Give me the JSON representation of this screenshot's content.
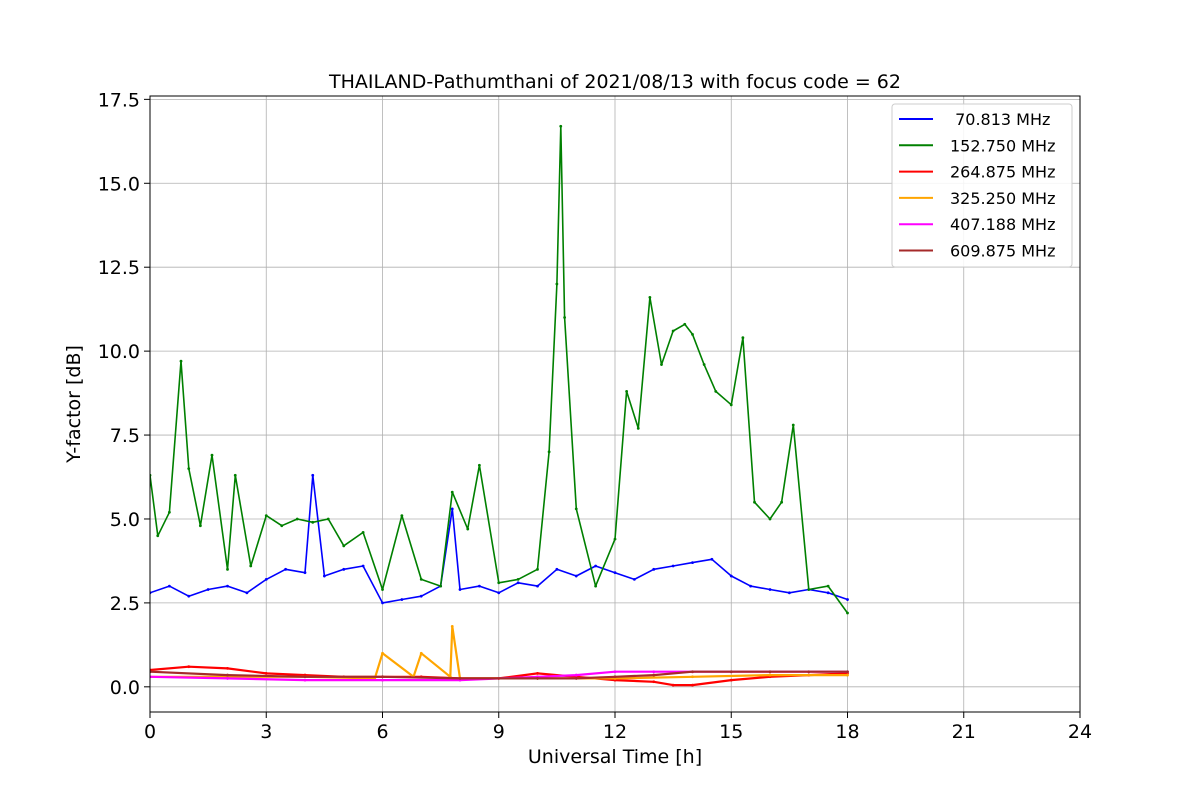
{
  "chart_data": {
    "type": "line",
    "title": "THAILAND-Pathumthani of 2021/08/13 with focus code = 62",
    "xlabel": "Universal Time [h]",
    "ylabel": "Y-factor [dB]",
    "xlim": [
      0,
      24
    ],
    "ylim": [
      -0.75,
      17.6
    ],
    "xticks": [
      0,
      3,
      6,
      9,
      12,
      15,
      18,
      21,
      24
    ],
    "xtick_labels": [
      "0",
      "3",
      "6",
      "9",
      "12",
      "15",
      "18",
      "21",
      "24"
    ],
    "yticks": [
      0,
      2.5,
      5,
      7.5,
      10,
      12.5,
      15,
      17.5
    ],
    "ytick_labels": [
      "0.0",
      "2.5",
      "5.0",
      "7.5",
      "10.0",
      "12.5",
      "15.0",
      "17.5"
    ],
    "grid": true,
    "legend_position": "top-right",
    "series": [
      {
        "name": " 70.813 MHz",
        "color": "#0000ff",
        "x": [
          0.0,
          0.5,
          1.0,
          1.5,
          2.0,
          2.5,
          3.0,
          3.5,
          4.0,
          4.2,
          4.5,
          5.0,
          5.5,
          6.0,
          6.5,
          7.0,
          7.5,
          7.8,
          8.0,
          8.5,
          9.0,
          9.5,
          10.0,
          10.5,
          11.0,
          11.5,
          12.0,
          12.5,
          13.0,
          13.5,
          14.0,
          14.5,
          15.0,
          15.5,
          16.0,
          16.5,
          17.0,
          17.5,
          18.0
        ],
        "y": [
          2.8,
          3.0,
          2.7,
          2.9,
          3.0,
          2.8,
          3.2,
          3.5,
          3.4,
          6.3,
          3.3,
          3.5,
          3.6,
          2.5,
          2.6,
          2.7,
          3.0,
          5.3,
          2.9,
          3.0,
          2.8,
          3.1,
          3.0,
          3.5,
          3.3,
          3.6,
          3.4,
          3.2,
          3.5,
          3.6,
          3.7,
          3.8,
          3.3,
          3.0,
          2.9,
          2.8,
          2.9,
          2.8,
          2.6
        ]
      },
      {
        "name": "152.750 MHz",
        "color": "#008000",
        "x": [
          0.0,
          0.2,
          0.5,
          0.8,
          1.0,
          1.3,
          1.6,
          2.0,
          2.2,
          2.6,
          3.0,
          3.4,
          3.8,
          4.2,
          4.6,
          5.0,
          5.5,
          6.0,
          6.5,
          7.0,
          7.5,
          7.8,
          8.2,
          8.5,
          9.0,
          9.5,
          10.0,
          10.3,
          10.5,
          10.6,
          10.7,
          11.0,
          11.5,
          12.0,
          12.3,
          12.6,
          12.9,
          13.2,
          13.5,
          13.8,
          14.0,
          14.3,
          14.6,
          15.0,
          15.3,
          15.6,
          16.0,
          16.3,
          16.6,
          17.0,
          17.5,
          18.0
        ],
        "y": [
          6.3,
          4.5,
          5.2,
          9.7,
          6.5,
          4.8,
          6.9,
          3.5,
          6.3,
          3.6,
          5.1,
          4.8,
          5.0,
          4.9,
          5.0,
          4.2,
          4.6,
          2.9,
          5.1,
          3.2,
          3.0,
          5.8,
          4.7,
          6.6,
          3.1,
          3.2,
          3.5,
          7.0,
          12.0,
          16.7,
          11.0,
          5.3,
          3.0,
          4.4,
          8.8,
          7.7,
          11.6,
          9.6,
          10.6,
          10.8,
          10.5,
          9.6,
          8.8,
          8.4,
          10.4,
          5.5,
          5.0,
          5.5,
          7.8,
          2.9,
          3.0,
          2.2
        ]
      },
      {
        "name": "264.875 MHz",
        "color": "#ff0000",
        "x": [
          0.0,
          1.0,
          2.0,
          3.0,
          4.0,
          5.0,
          6.0,
          7.0,
          8.0,
          9.0,
          10.0,
          11.0,
          12.0,
          13.0,
          13.5,
          14.0,
          15.0,
          16.0,
          17.0,
          18.0
        ],
        "y": [
          0.5,
          0.6,
          0.55,
          0.4,
          0.35,
          0.3,
          0.3,
          0.3,
          0.25,
          0.25,
          0.4,
          0.3,
          0.2,
          0.15,
          0.05,
          0.05,
          0.2,
          0.3,
          0.35,
          0.4
        ]
      },
      {
        "name": "325.250 MHz",
        "color": "#ffa500",
        "x": [
          0.0,
          2.0,
          4.0,
          5.8,
          6.0,
          6.8,
          7.0,
          7.75,
          7.8,
          8.0,
          10.0,
          12.0,
          14.0,
          16.0,
          18.0
        ],
        "y": [
          0.3,
          0.3,
          0.3,
          0.25,
          1.0,
          0.3,
          1.0,
          0.3,
          1.8,
          0.25,
          0.25,
          0.25,
          0.3,
          0.35,
          0.35
        ]
      },
      {
        "name": "407.188 MHz",
        "color": "#ff00ff",
        "x": [
          0.0,
          2.0,
          4.0,
          6.0,
          8.0,
          10.0,
          11.0,
          12.0,
          13.0,
          14.0,
          15.0,
          16.0,
          17.0,
          18.0
        ],
        "y": [
          0.3,
          0.25,
          0.2,
          0.2,
          0.2,
          0.3,
          0.35,
          0.45,
          0.45,
          0.45,
          0.45,
          0.45,
          0.45,
          0.45
        ]
      },
      {
        "name": "609.875 MHz",
        "color": "#a52a2a",
        "x": [
          0.0,
          2.0,
          4.0,
          6.0,
          8.0,
          10.0,
          11.0,
          12.0,
          13.0,
          14.0,
          15.0,
          16.0,
          17.0,
          18.0
        ],
        "y": [
          0.45,
          0.35,
          0.3,
          0.3,
          0.25,
          0.25,
          0.25,
          0.3,
          0.35,
          0.45,
          0.45,
          0.45,
          0.45,
          0.45
        ]
      }
    ]
  }
}
